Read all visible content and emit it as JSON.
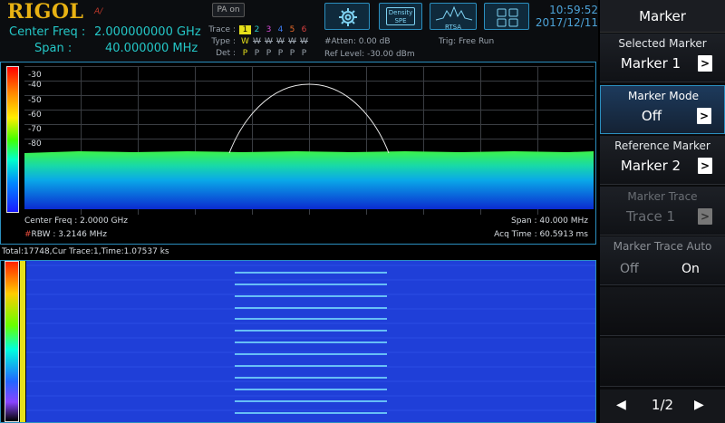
{
  "header": {
    "brand": "RIGOL",
    "brand_sub": "A/",
    "center_freq_label": "Center Freq :",
    "center_freq_value": "2.000000000 GHz",
    "span_label": "Span :",
    "span_value": "40.000000 MHz",
    "pa_label": "PA on",
    "trace_label": "Trace :",
    "type_label": "Type :",
    "det_label": "Det :",
    "traces": [
      "1",
      "2",
      "3",
      "4",
      "5",
      "6"
    ],
    "types": [
      "W",
      "W",
      "W",
      "W",
      "W",
      "W"
    ],
    "dets": [
      "P",
      "P",
      "P",
      "P",
      "P",
      "P"
    ],
    "atten": "#Atten: 0.00 dB",
    "ref_level": "Ref Level: -30.00 dBm",
    "trigger": "Trig: Free Run",
    "density_label": "Density SPE",
    "rtsa_label": "RTSA",
    "time": "10:59:52",
    "date": "2017/12/11"
  },
  "spectrum": {
    "y_ticks": [
      "-30",
      "-40",
      "-50",
      "-60",
      "-70",
      "-80"
    ],
    "center_freq": "Center Freq : 2.0000 GHz",
    "rbw_hash": "#",
    "rbw": "RBW : 3.2146 MHz",
    "span": "Span : 40.000 MHz",
    "acq_time": "Acq Time : 60.5913 ms"
  },
  "waterfall": {
    "status": "Total:17748,Cur Trace:1,Time:1.07537 ks"
  },
  "menu": {
    "title": "Marker",
    "selected_marker_title": "Selected Marker",
    "selected_marker_value": "Marker 1",
    "marker_mode_title": "Marker Mode",
    "marker_mode_value": "Off",
    "reference_marker_title": "Reference Marker",
    "reference_marker_value": "Marker 2",
    "marker_trace_title": "Marker Trace",
    "marker_trace_value": "Trace 1",
    "marker_trace_auto_title": "Marker Trace Auto",
    "auto_off": "Off",
    "auto_on": "On",
    "page": "1/2"
  },
  "colors": {
    "accent": "#2b8fbf",
    "brand": "#e8b213",
    "freq_text": "#24c7c7"
  }
}
